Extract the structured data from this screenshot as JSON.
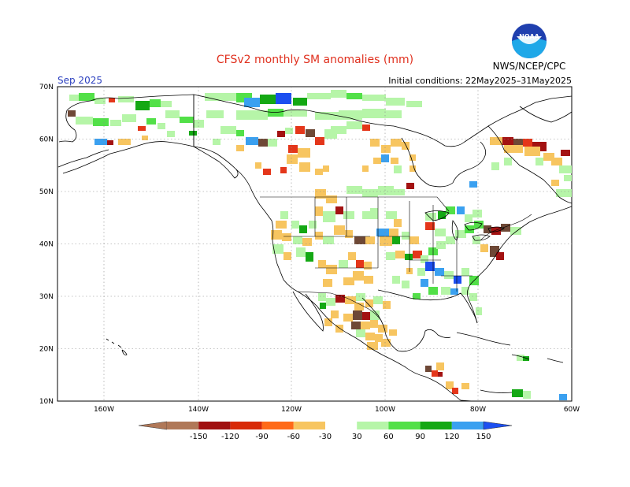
{
  "title": "CFSv2 monthly SM anomalies (mm)",
  "month": "Sep 2025",
  "initial_conditions": "Initial conditions: 22May2025–31May2025",
  "source": "NWS/NCEP/CPC",
  "logo_text": "NOAA",
  "lat_labels": [
    "70N",
    "60N",
    "50N",
    "40N",
    "30N",
    "20N",
    "10N"
  ],
  "lon_labels": [
    "160W",
    "140W",
    "120W",
    "100W",
    "80W",
    "60W"
  ],
  "colorbar": {
    "labels": [
      "-150",
      "-120",
      "-90",
      "-60",
      "-30",
      "30",
      "60",
      "90",
      "120",
      "150"
    ],
    "colors": [
      "#b07858",
      "#a01010",
      "#d82a08",
      "#ff6a18",
      "#f7c560",
      "#ffffff",
      "#b6f5a8",
      "#52e048",
      "#14a814",
      "#3aa0f0",
      "#1c4ff0"
    ]
  },
  "anomaly_colors": {
    "dry_extreme": "#6e4836",
    "very_dry": "#a31212",
    "dry": "#e4361a",
    "moderately_dry": "#f7c560",
    "moderately_wet": "#b6f5a8",
    "wet": "#52e048",
    "very_wet": "#14a814",
    "extreme_wet": "#3aa0f0",
    "wettest": "#1c4ff0"
  }
}
